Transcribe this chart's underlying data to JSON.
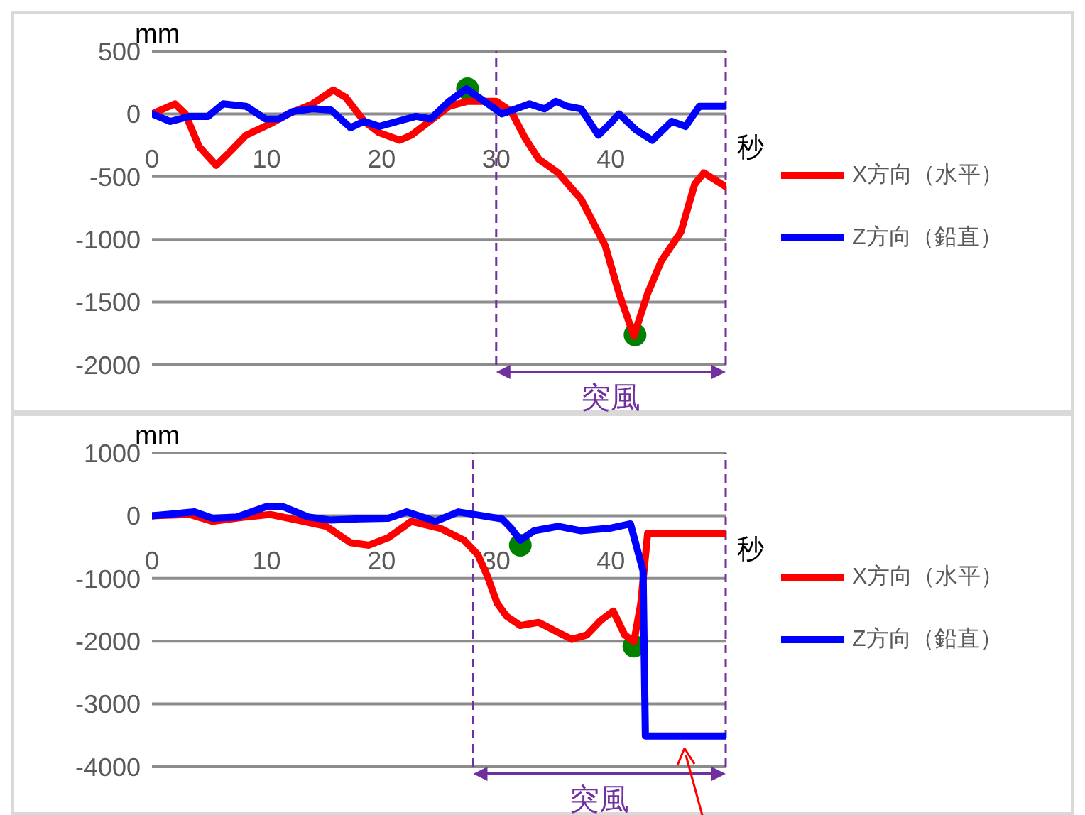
{
  "chart_data": [
    {
      "type": "line",
      "xlabel": "秒",
      "ylabel": "mm",
      "xlim": [
        0,
        50
      ],
      "xticks": [
        0,
        10,
        20,
        30,
        40
      ],
      "ylim": [
        -2000,
        500
      ],
      "yticks": [
        500,
        0,
        -500,
        -1000,
        -1500,
        -2000
      ],
      "grid": "y",
      "legend": "right",
      "line_style": "solid",
      "ref_lines": [
        {
          "axis": "x",
          "value": 30,
          "color": "#7030a0",
          "line_style": "dashed"
        },
        {
          "axis": "x",
          "value": 50,
          "color": "#7030a0",
          "line_style": "dashed"
        }
      ],
      "annotations": [
        "突風"
      ],
      "series": [
        {
          "name": "X方向（水平）",
          "color": "#ff0000",
          "x": [
            0,
            2,
            2.9,
            4.1,
            5.6,
            6.6,
            8.2,
            10.3,
            11.9,
            14,
            15.8,
            16.9,
            18.5,
            19.8,
            21.6,
            22.6,
            23.9,
            25.9,
            27.5,
            30,
            31.3,
            32.5,
            33.7,
            35.4,
            37.4,
            39.5,
            40.7,
            42,
            43.2,
            44.4,
            46.1,
            47.3,
            48.1,
            50
          ],
          "values": [
            0,
            80,
            0,
            -260,
            -410,
            -320,
            -170,
            -80,
            0,
            80,
            190,
            130,
            -60,
            -150,
            -210,
            -170,
            -80,
            60,
            100,
            100,
            20,
            -190,
            -360,
            -470,
            -680,
            -1050,
            -1430,
            -1770,
            -1430,
            -1170,
            -940,
            -560,
            -470,
            -580
          ]
        },
        {
          "name": "Z方向（鉛直）",
          "color": "#0000ff",
          "x": [
            0,
            1.6,
            3.3,
            4.9,
            6.2,
            8.2,
            9.9,
            11.1,
            12.3,
            14,
            15.6,
            17.3,
            18.5,
            19.8,
            21.4,
            23,
            24.3,
            25.9,
            27.4,
            28.8,
            30.5,
            31.7,
            32.9,
            34.2,
            35.2,
            36.2,
            37.4,
            38.9,
            39.9,
            40.7,
            42.2,
            43.6,
            45.3,
            46.5,
            47.7,
            50
          ],
          "values": [
            0,
            -60,
            -20,
            -20,
            80,
            60,
            -40,
            -40,
            20,
            40,
            30,
            -110,
            -60,
            -100,
            -60,
            -20,
            -40,
            100,
            200,
            110,
            0,
            40,
            80,
            40,
            100,
            60,
            40,
            -170,
            -80,
            0,
            -130,
            -210,
            -60,
            -100,
            60,
            60
          ]
        },
        {
          "type": "scatter",
          "color": "#008000",
          "x": [
            27.5,
            42.1
          ],
          "values": [
            200,
            -1760
          ]
        }
      ]
    },
    {
      "type": "line",
      "xlabel": "秒",
      "ylabel": "mm",
      "xlim": [
        0,
        50
      ],
      "xticks": [
        0,
        10,
        20,
        30,
        40
      ],
      "ylim": [
        -4000,
        1000
      ],
      "yticks": [
        1000,
        0,
        -1000,
        -2000,
        -3000,
        -4000
      ],
      "grid": "y",
      "legend": "right",
      "line_style": "solid",
      "ref_lines": [
        {
          "axis": "x",
          "value": 28,
          "color": "#7030a0",
          "line_style": "dashed"
        },
        {
          "axis": "x",
          "value": 50,
          "color": "#7030a0",
          "line_style": "dashed"
        }
      ],
      "annotations": [
        "突風"
      ],
      "series": [
        {
          "name": "X方向（水平）",
          "color": "#ff0000",
          "x": [
            0,
            3.3,
            5.3,
            8.2,
            10.3,
            13.2,
            15.2,
            17.3,
            18.9,
            20.6,
            22.6,
            25.1,
            27.2,
            28.4,
            29.2,
            30.1,
            30.9,
            32.1,
            33.7,
            35.4,
            36.6,
            37.9,
            39.1,
            40.2,
            41.2,
            42,
            42.6,
            43.2,
            50
          ],
          "values": [
            0,
            20,
            -90,
            -20,
            20,
            -90,
            -170,
            -430,
            -470,
            -350,
            -90,
            -200,
            -390,
            -620,
            -950,
            -1400,
            -1600,
            -1750,
            -1700,
            -1860,
            -1970,
            -1900,
            -1670,
            -1520,
            -1900,
            -2010,
            -1400,
            -280,
            -280
          ]
        },
        {
          "name": "Z方向（鉛直）",
          "color": "#0000ff",
          "x": [
            0,
            3.7,
            5.3,
            7.4,
            9.9,
            11.5,
            13.6,
            15.6,
            18.1,
            20.6,
            22.2,
            24.7,
            26.7,
            30.5,
            31.3,
            32.1,
            33.3,
            35.4,
            37.4,
            39.9,
            41.7,
            42.8,
            43,
            50
          ],
          "values": [
            0,
            60,
            -40,
            -20,
            140,
            140,
            -20,
            -70,
            -50,
            -40,
            60,
            -90,
            60,
            -50,
            -200,
            -390,
            -240,
            -170,
            -240,
            -200,
            -130,
            -880,
            -3510,
            -3510
          ]
        },
        {
          "type": "scatter",
          "color": "#008000",
          "x": [
            32.1,
            42
          ],
          "values": [
            -470,
            -2080
          ]
        }
      ]
    }
  ]
}
